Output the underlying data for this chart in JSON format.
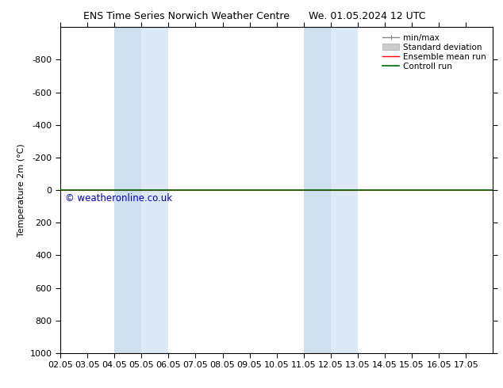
{
  "title_left": "ENS Time Series Norwich Weather Centre",
  "title_right": "We. 01.05.2024 12 UTC",
  "ylabel": "Temperature 2m (°C)",
  "xlim": [
    0,
    16
  ],
  "ylim": [
    1000,
    -1000
  ],
  "yticks": [
    -800,
    -600,
    -400,
    -200,
    0,
    200,
    400,
    600,
    800,
    1000
  ],
  "xtick_labels": [
    "02.05",
    "03.05",
    "04.05",
    "05.05",
    "06.05",
    "07.05",
    "08.05",
    "09.05",
    "10.05",
    "11.05",
    "12.05",
    "13.05",
    "14.05",
    "15.05",
    "16.05",
    "17.05"
  ],
  "shaded_regions": [
    [
      2,
      3
    ],
    [
      3,
      4
    ],
    [
      9,
      10
    ],
    [
      10,
      11
    ]
  ],
  "shaded_color": "#cee0ee",
  "shaded_color2": "#ddeaf5",
  "watermark": "© weatheronline.co.uk",
  "watermark_color": "#0000bb",
  "line_red_color": "#ff0000",
  "line_green_color": "#006600",
  "legend_entries": [
    "min/max",
    "Standard deviation",
    "Ensemble mean run",
    "Controll run"
  ],
  "background_color": "#ffffff",
  "border_color": "#000000",
  "title_fontsize": 9,
  "axis_fontsize": 8,
  "legend_fontsize": 7.5
}
